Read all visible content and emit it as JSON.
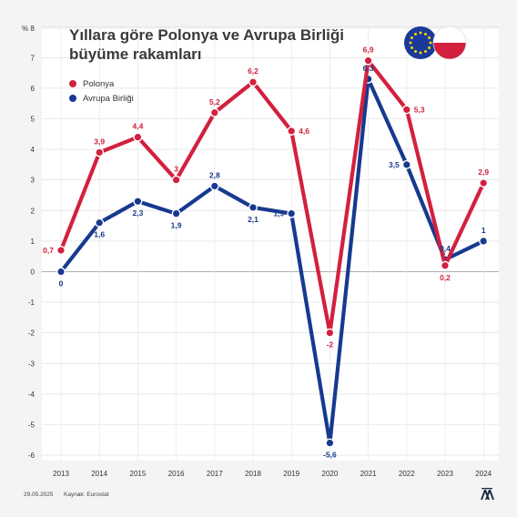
{
  "title_line1": "Yıllara göre Polonya ve Avrupa Birliği",
  "title_line2": "büyüme rakamları",
  "unit_label": "% 8",
  "footer": {
    "date": "29.05.2025",
    "source": "Kaynak: Eurostat"
  },
  "icons": {
    "flag_eu": "eu-flag-icon",
    "flag_pl": "poland-flag-icon",
    "logo": "aa-logo-icon"
  },
  "chart_data": {
    "type": "line",
    "x": [
      "2013",
      "2014",
      "2015",
      "2016",
      "2017",
      "2018",
      "2019",
      "2020",
      "2021",
      "2022",
      "2023",
      "2024"
    ],
    "ylim": [
      -6,
      8
    ],
    "yticks": [
      "-6",
      "-5",
      "-4",
      "-3",
      "-2",
      "-1",
      "0",
      "1",
      "2",
      "3",
      "4",
      "5",
      "6",
      "7"
    ],
    "grid": true,
    "legend_position": "top-left",
    "series": [
      {
        "name": "Polonya",
        "color": "#d3203f",
        "values": [
          0.7,
          3.9,
          4.4,
          3,
          5.2,
          6.2,
          4.6,
          -2,
          6.9,
          5.3,
          0.2,
          2.9
        ],
        "labels": [
          "0,7",
          "3,9",
          "4,4",
          "3",
          "5,2",
          "6,2",
          "4,6",
          "-2",
          "6,9",
          "5,3",
          "0,2",
          "2,9"
        ]
      },
      {
        "name": "Avrupa Birliği",
        "color": "#173a8f",
        "values": [
          0,
          1.6,
          2.3,
          1.9,
          2.8,
          2.1,
          1.9,
          -5.6,
          6.3,
          3.5,
          0.4,
          1
        ],
        "labels": [
          "0",
          "1,6",
          "2,3",
          "1,9",
          "2,8",
          "2,1",
          "1,9",
          "-5,6",
          "6,3",
          "3,5",
          "0,4",
          "1"
        ]
      }
    ]
  }
}
